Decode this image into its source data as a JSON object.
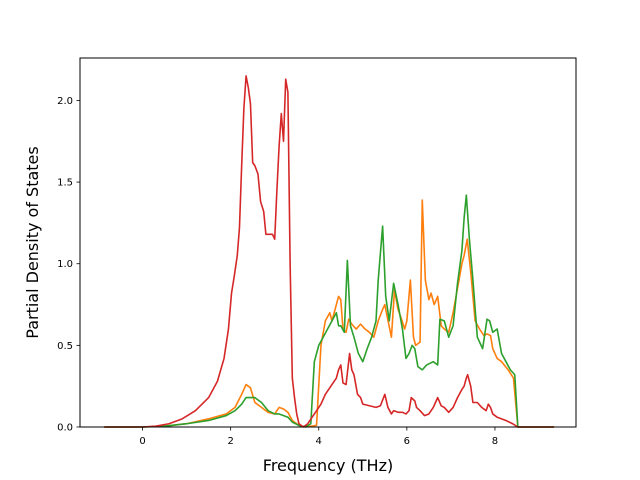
{
  "chart_data": {
    "type": "line",
    "title": "",
    "xlabel": "Frequency (THz)",
    "ylabel": "Partial Density of States",
    "xlim": [
      -1.42,
      9.84
    ],
    "ylim": [
      0.0,
      2.26
    ],
    "xticks": [
      0,
      2,
      4,
      6,
      8
    ],
    "yticks": [
      0.0,
      0.5,
      1.0,
      1.5,
      2.0
    ],
    "xtick_labels": [
      "0",
      "2",
      "4",
      "6",
      "8"
    ],
    "ytick_labels": [
      "0.0",
      "0.5",
      "1.0",
      "1.5",
      "2.0"
    ],
    "grid": false,
    "legend": "none",
    "series": [
      {
        "color": "#ff7f0e",
        "points": [
          [
            -0.87,
            0
          ],
          [
            0,
            0
          ],
          [
            0.5,
            0.005
          ],
          [
            1.0,
            0.02
          ],
          [
            1.5,
            0.05
          ],
          [
            1.9,
            0.08
          ],
          [
            2.1,
            0.12
          ],
          [
            2.25,
            0.2
          ],
          [
            2.35,
            0.26
          ],
          [
            2.45,
            0.24
          ],
          [
            2.55,
            0.15
          ],
          [
            2.7,
            0.12
          ],
          [
            2.85,
            0.09
          ],
          [
            3.0,
            0.08
          ],
          [
            3.1,
            0.12
          ],
          [
            3.2,
            0.11
          ],
          [
            3.3,
            0.09
          ],
          [
            3.4,
            0.04
          ],
          [
            3.55,
            0.01
          ],
          [
            3.7,
            0.0
          ],
          [
            3.95,
            0.01
          ],
          [
            4.05,
            0.5
          ],
          [
            4.15,
            0.65
          ],
          [
            4.25,
            0.7
          ],
          [
            4.3,
            0.65
          ],
          [
            4.4,
            0.75
          ],
          [
            4.45,
            0.8
          ],
          [
            4.5,
            0.78
          ],
          [
            4.55,
            0.6
          ],
          [
            4.62,
            0.58
          ],
          [
            4.68,
            0.66
          ],
          [
            4.75,
            0.63
          ],
          [
            4.85,
            0.6
          ],
          [
            4.95,
            0.63
          ],
          [
            5.05,
            0.6
          ],
          [
            5.15,
            0.58
          ],
          [
            5.25,
            0.55
          ],
          [
            5.35,
            0.65
          ],
          [
            5.45,
            0.72
          ],
          [
            5.5,
            0.75
          ],
          [
            5.55,
            0.68
          ],
          [
            5.65,
            0.55
          ],
          [
            5.72,
            0.84
          ],
          [
            5.8,
            0.72
          ],
          [
            5.88,
            0.66
          ],
          [
            5.95,
            0.6
          ],
          [
            6.0,
            0.65
          ],
          [
            6.08,
            0.9
          ],
          [
            6.15,
            0.55
          ],
          [
            6.2,
            0.5
          ],
          [
            6.3,
            0.52
          ],
          [
            6.35,
            1.39
          ],
          [
            6.42,
            0.9
          ],
          [
            6.5,
            0.78
          ],
          [
            6.55,
            0.82
          ],
          [
            6.62,
            0.75
          ],
          [
            6.7,
            0.8
          ],
          [
            6.78,
            0.62
          ],
          [
            6.85,
            0.6
          ],
          [
            6.95,
            0.58
          ],
          [
            7.05,
            0.7
          ],
          [
            7.15,
            0.85
          ],
          [
            7.25,
            1.0
          ],
          [
            7.3,
            1.05
          ],
          [
            7.37,
            1.15
          ],
          [
            7.45,
            0.95
          ],
          [
            7.55,
            0.65
          ],
          [
            7.65,
            0.6
          ],
          [
            7.75,
            0.56
          ],
          [
            7.82,
            0.57
          ],
          [
            7.9,
            0.56
          ],
          [
            7.95,
            0.48
          ],
          [
            8.05,
            0.42
          ],
          [
            8.15,
            0.4
          ],
          [
            8.3,
            0.35
          ],
          [
            8.42,
            0.3
          ],
          [
            8.52,
            0.0
          ],
          [
            9.34,
            0
          ]
        ]
      },
      {
        "color": "#2ca02c",
        "points": [
          [
            -0.87,
            0
          ],
          [
            0,
            0
          ],
          [
            0.5,
            0.005
          ],
          [
            1.0,
            0.02
          ],
          [
            1.5,
            0.04
          ],
          [
            1.9,
            0.07
          ],
          [
            2.1,
            0.1
          ],
          [
            2.25,
            0.14
          ],
          [
            2.35,
            0.18
          ],
          [
            2.45,
            0.18
          ],
          [
            2.55,
            0.18
          ],
          [
            2.7,
            0.15
          ],
          [
            2.85,
            0.1
          ],
          [
            3.0,
            0.08
          ],
          [
            3.1,
            0.08
          ],
          [
            3.2,
            0.07
          ],
          [
            3.3,
            0.06
          ],
          [
            3.4,
            0.03
          ],
          [
            3.55,
            0.01
          ],
          [
            3.7,
            0.0
          ],
          [
            3.82,
            0.02
          ],
          [
            3.9,
            0.4
          ],
          [
            4.0,
            0.5
          ],
          [
            4.1,
            0.55
          ],
          [
            4.2,
            0.6
          ],
          [
            4.3,
            0.65
          ],
          [
            4.4,
            0.7
          ],
          [
            4.45,
            0.62
          ],
          [
            4.5,
            0.62
          ],
          [
            4.58,
            0.58
          ],
          [
            4.65,
            1.02
          ],
          [
            4.72,
            0.62
          ],
          [
            4.8,
            0.55
          ],
          [
            4.9,
            0.45
          ],
          [
            5.0,
            0.4
          ],
          [
            5.1,
            0.48
          ],
          [
            5.2,
            0.55
          ],
          [
            5.3,
            0.65
          ],
          [
            5.35,
            0.9
          ],
          [
            5.45,
            1.23
          ],
          [
            5.52,
            0.8
          ],
          [
            5.6,
            0.65
          ],
          [
            5.7,
            0.88
          ],
          [
            5.8,
            0.75
          ],
          [
            5.9,
            0.6
          ],
          [
            5.98,
            0.42
          ],
          [
            6.05,
            0.45
          ],
          [
            6.12,
            0.5
          ],
          [
            6.18,
            0.48
          ],
          [
            6.25,
            0.37
          ],
          [
            6.35,
            0.35
          ],
          [
            6.45,
            0.38
          ],
          [
            6.6,
            0.4
          ],
          [
            6.7,
            0.38
          ],
          [
            6.75,
            0.66
          ],
          [
            6.85,
            0.65
          ],
          [
            6.95,
            0.55
          ],
          [
            7.05,
            0.62
          ],
          [
            7.15,
            0.88
          ],
          [
            7.25,
            1.08
          ],
          [
            7.3,
            1.28
          ],
          [
            7.35,
            1.42
          ],
          [
            7.42,
            1.15
          ],
          [
            7.5,
            0.9
          ],
          [
            7.6,
            0.55
          ],
          [
            7.72,
            0.48
          ],
          [
            7.82,
            0.66
          ],
          [
            7.88,
            0.65
          ],
          [
            7.95,
            0.58
          ],
          [
            8.05,
            0.6
          ],
          [
            8.15,
            0.45
          ],
          [
            8.25,
            0.4
          ],
          [
            8.35,
            0.35
          ],
          [
            8.45,
            0.32
          ],
          [
            8.52,
            0.0
          ],
          [
            9.34,
            0
          ]
        ]
      },
      {
        "color": "#d62728",
        "points": [
          [
            -0.87,
            0
          ],
          [
            0,
            0
          ],
          [
            0.3,
            0.005
          ],
          [
            0.6,
            0.02
          ],
          [
            0.9,
            0.05
          ],
          [
            1.2,
            0.1
          ],
          [
            1.5,
            0.18
          ],
          [
            1.7,
            0.28
          ],
          [
            1.85,
            0.42
          ],
          [
            1.95,
            0.6
          ],
          [
            2.02,
            0.82
          ],
          [
            2.08,
            0.92
          ],
          [
            2.15,
            1.05
          ],
          [
            2.2,
            1.22
          ],
          [
            2.25,
            1.6
          ],
          [
            2.3,
            1.95
          ],
          [
            2.35,
            2.15
          ],
          [
            2.4,
            2.08
          ],
          [
            2.45,
            1.98
          ],
          [
            2.5,
            1.62
          ],
          [
            2.55,
            1.6
          ],
          [
            2.62,
            1.55
          ],
          [
            2.68,
            1.38
          ],
          [
            2.75,
            1.32
          ],
          [
            2.8,
            1.18
          ],
          [
            2.88,
            1.18
          ],
          [
            2.95,
            1.18
          ],
          [
            3.0,
            1.15
          ],
          [
            3.05,
            1.45
          ],
          [
            3.1,
            1.72
          ],
          [
            3.15,
            1.92
          ],
          [
            3.2,
            1.75
          ],
          [
            3.25,
            2.13
          ],
          [
            3.3,
            2.05
          ],
          [
            3.35,
            1.0
          ],
          [
            3.4,
            0.3
          ],
          [
            3.45,
            0.18
          ],
          [
            3.5,
            0.08
          ],
          [
            3.55,
            0.02
          ],
          [
            3.65,
            0.0
          ],
          [
            3.75,
            0.02
          ],
          [
            3.85,
            0.06
          ],
          [
            3.95,
            0.1
          ],
          [
            4.05,
            0.14
          ],
          [
            4.15,
            0.2
          ],
          [
            4.25,
            0.24
          ],
          [
            4.35,
            0.28
          ],
          [
            4.4,
            0.3
          ],
          [
            4.45,
            0.35
          ],
          [
            4.5,
            0.38
          ],
          [
            4.55,
            0.27
          ],
          [
            4.62,
            0.26
          ],
          [
            4.7,
            0.45
          ],
          [
            4.75,
            0.35
          ],
          [
            4.8,
            0.32
          ],
          [
            4.88,
            0.2
          ],
          [
            4.95,
            0.18
          ],
          [
            5.0,
            0.14
          ],
          [
            5.15,
            0.13
          ],
          [
            5.3,
            0.12
          ],
          [
            5.4,
            0.13
          ],
          [
            5.5,
            0.2
          ],
          [
            5.57,
            0.12
          ],
          [
            5.65,
            0.08
          ],
          [
            5.7,
            0.1
          ],
          [
            5.8,
            0.09
          ],
          [
            5.9,
            0.09
          ],
          [
            5.98,
            0.08
          ],
          [
            6.05,
            0.1
          ],
          [
            6.1,
            0.18
          ],
          [
            6.18,
            0.16
          ],
          [
            6.22,
            0.12
          ],
          [
            6.3,
            0.1
          ],
          [
            6.4,
            0.07
          ],
          [
            6.5,
            0.08
          ],
          [
            6.6,
            0.12
          ],
          [
            6.65,
            0.15
          ],
          [
            6.7,
            0.18
          ],
          [
            6.78,
            0.13
          ],
          [
            6.85,
            0.12
          ],
          [
            6.95,
            0.09
          ],
          [
            7.05,
            0.12
          ],
          [
            7.15,
            0.18
          ],
          [
            7.25,
            0.23
          ],
          [
            7.3,
            0.25
          ],
          [
            7.35,
            0.3
          ],
          [
            7.38,
            0.32
          ],
          [
            7.45,
            0.25
          ],
          [
            7.5,
            0.15
          ],
          [
            7.6,
            0.15
          ],
          [
            7.7,
            0.12
          ],
          [
            7.8,
            0.1
          ],
          [
            7.85,
            0.14
          ],
          [
            7.9,
            0.12
          ],
          [
            7.95,
            0.08
          ],
          [
            8.05,
            0.06
          ],
          [
            8.15,
            0.05
          ],
          [
            8.25,
            0.04
          ],
          [
            8.4,
            0.02
          ],
          [
            8.52,
            0.0
          ],
          [
            9.34,
            0
          ]
        ]
      }
    ]
  }
}
